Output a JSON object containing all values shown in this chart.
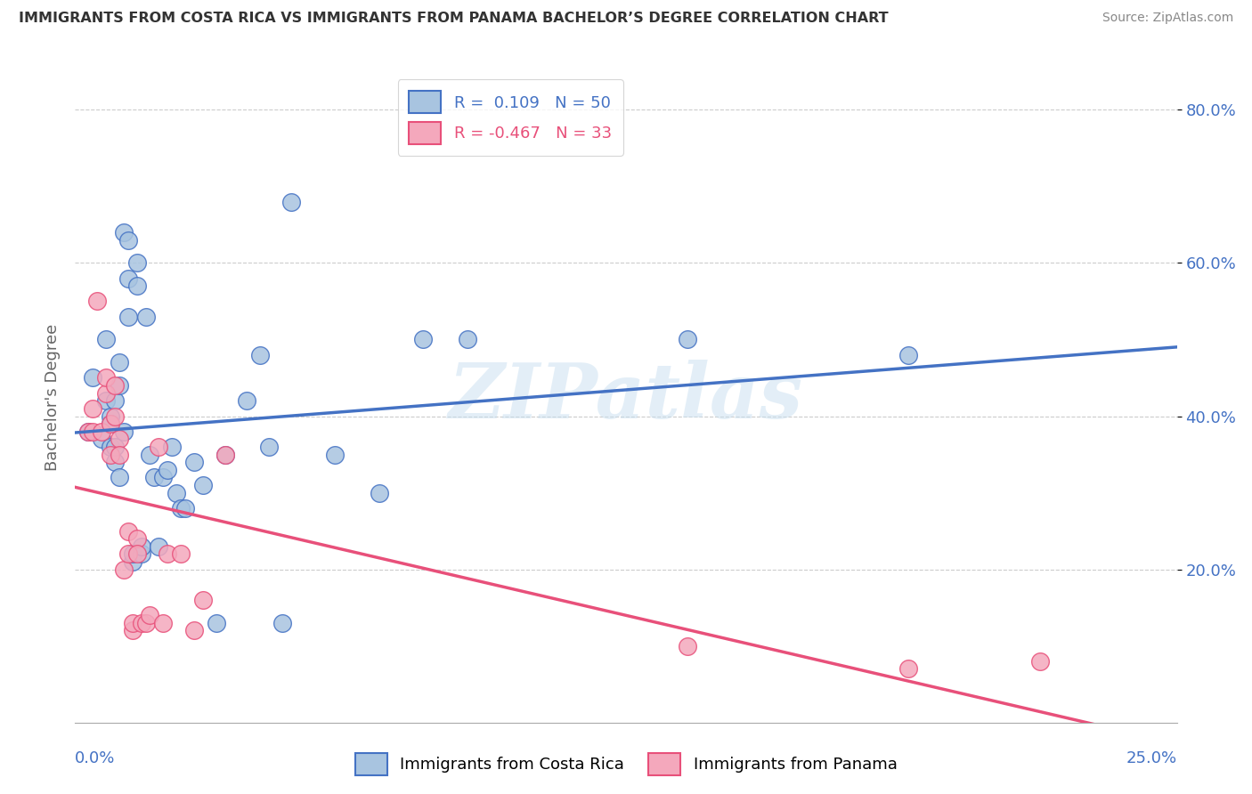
{
  "title": "IMMIGRANTS FROM COSTA RICA VS IMMIGRANTS FROM PANAMA BACHELOR’S DEGREE CORRELATION CHART",
  "source": "Source: ZipAtlas.com",
  "ylabel": "Bachelor's Degree",
  "xlim": [
    0.0,
    0.25
  ],
  "ylim": [
    0.0,
    0.85
  ],
  "yticks": [
    0.2,
    0.4,
    0.6,
    0.8
  ],
  "ytick_labels": [
    "20.0%",
    "40.0%",
    "60.0%",
    "80.0%"
  ],
  "watermark_text": "ZIPatlas",
  "color_cr": "#a8c4e0",
  "color_pa": "#f4a8bc",
  "line_color_cr": "#4472C4",
  "line_color_pa": "#e8507a",
  "r_cr": 0.109,
  "n_cr": 50,
  "r_pa": -0.467,
  "n_pa": 33,
  "costa_rica_x": [
    0.003,
    0.004,
    0.006,
    0.007,
    0.007,
    0.008,
    0.008,
    0.008,
    0.009,
    0.009,
    0.009,
    0.01,
    0.01,
    0.01,
    0.011,
    0.011,
    0.012,
    0.012,
    0.012,
    0.013,
    0.013,
    0.014,
    0.014,
    0.015,
    0.015,
    0.016,
    0.017,
    0.018,
    0.019,
    0.02,
    0.021,
    0.022,
    0.023,
    0.024,
    0.025,
    0.027,
    0.029,
    0.032,
    0.034,
    0.039,
    0.042,
    0.044,
    0.047,
    0.049,
    0.059,
    0.069,
    0.079,
    0.089,
    0.139,
    0.189
  ],
  "costa_rica_y": [
    0.38,
    0.45,
    0.37,
    0.5,
    0.42,
    0.36,
    0.4,
    0.39,
    0.34,
    0.42,
    0.36,
    0.32,
    0.47,
    0.44,
    0.38,
    0.64,
    0.63,
    0.58,
    0.53,
    0.21,
    0.22,
    0.6,
    0.57,
    0.22,
    0.23,
    0.53,
    0.35,
    0.32,
    0.23,
    0.32,
    0.33,
    0.36,
    0.3,
    0.28,
    0.28,
    0.34,
    0.31,
    0.13,
    0.35,
    0.42,
    0.48,
    0.36,
    0.13,
    0.68,
    0.35,
    0.3,
    0.5,
    0.5,
    0.5,
    0.48
  ],
  "panama_x": [
    0.003,
    0.004,
    0.004,
    0.005,
    0.006,
    0.007,
    0.007,
    0.008,
    0.008,
    0.009,
    0.009,
    0.01,
    0.01,
    0.011,
    0.012,
    0.012,
    0.013,
    0.013,
    0.014,
    0.014,
    0.015,
    0.016,
    0.017,
    0.019,
    0.02,
    0.021,
    0.024,
    0.027,
    0.029,
    0.034,
    0.139,
    0.189,
    0.219
  ],
  "panama_y": [
    0.38,
    0.41,
    0.38,
    0.55,
    0.38,
    0.43,
    0.45,
    0.39,
    0.35,
    0.44,
    0.4,
    0.37,
    0.35,
    0.2,
    0.22,
    0.25,
    0.12,
    0.13,
    0.24,
    0.22,
    0.13,
    0.13,
    0.14,
    0.36,
    0.13,
    0.22,
    0.22,
    0.12,
    0.16,
    0.35,
    0.1,
    0.07,
    0.08
  ]
}
